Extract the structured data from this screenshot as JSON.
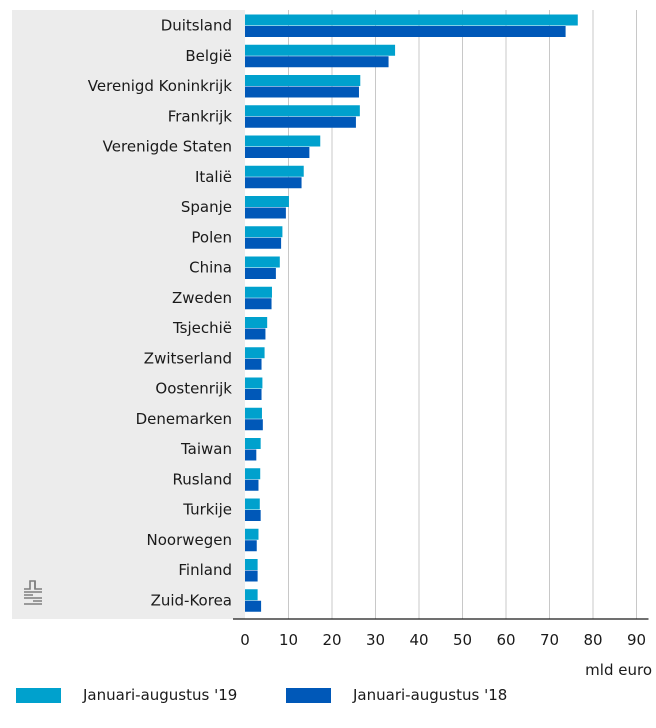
{
  "chart_data": {
    "type": "bar",
    "orientation": "horizontal",
    "categories": [
      "Duitsland",
      "België",
      "Verenigd Koninkrijk",
      "Frankrijk",
      "Verenigde Staten",
      "Italië",
      "Spanje",
      "Polen",
      "China",
      "Zweden",
      "Tsjechië",
      "Zwitserland",
      "Oostenrijk",
      "Denemarken",
      "Taiwan",
      "Rusland",
      "Turkije",
      "Noorwegen",
      "Finland",
      "Zuid-Korea"
    ],
    "series": [
      {
        "name": "Januari-augustus '19",
        "color": "#00a1cd",
        "values": [
          76.5,
          34.5,
          26.5,
          26.4,
          17.3,
          13.5,
          10.1,
          8.6,
          8.0,
          6.2,
          5.1,
          4.5,
          4.0,
          3.9,
          3.6,
          3.5,
          3.4,
          3.1,
          2.9,
          2.9
        ]
      },
      {
        "name": "Januari-augustus '18",
        "color": "#0058b8",
        "values": [
          73.7,
          33.0,
          26.2,
          25.5,
          14.8,
          13.0,
          9.4,
          8.3,
          7.1,
          6.1,
          4.7,
          3.8,
          3.8,
          4.1,
          2.6,
          3.1,
          3.6,
          2.7,
          2.9,
          3.7
        ]
      }
    ],
    "xlim": [
      0,
      90
    ],
    "xticks": [
      0,
      10,
      20,
      30,
      40,
      50,
      60,
      70,
      80,
      90
    ],
    "xlabel": "mld euro",
    "grid": "vertical",
    "legend_position": "bottom"
  },
  "colors": {
    "label_panel": "#ececec",
    "grid": "#c8c8c8",
    "axis": "#1a1a1a",
    "logo": "#7f7f7f"
  },
  "logo_icon": "cbs-logo-icon"
}
